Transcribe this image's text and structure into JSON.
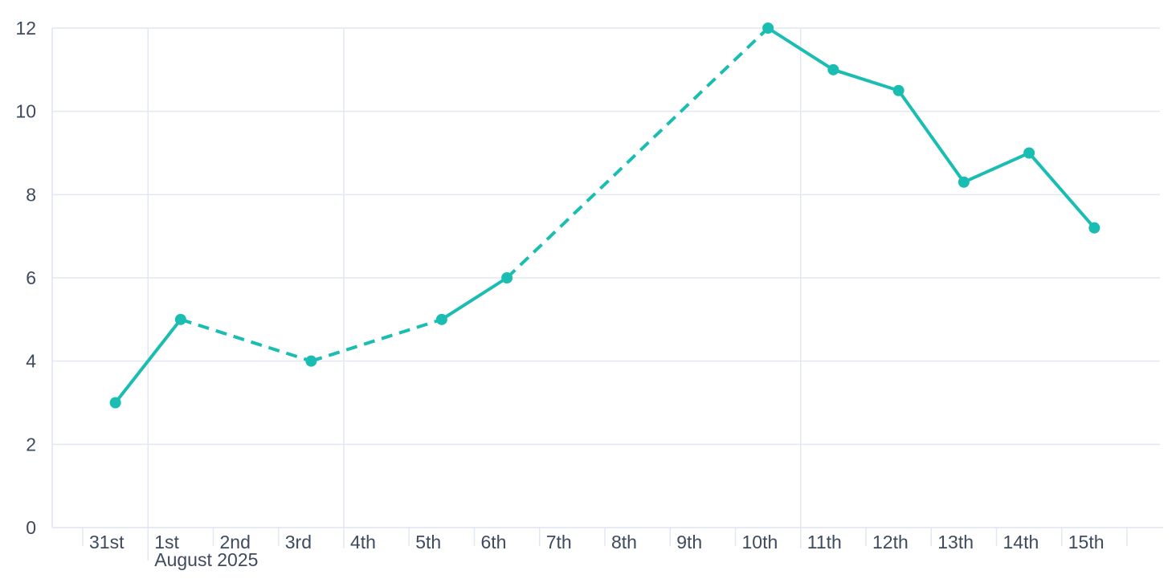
{
  "chart_data": {
    "type": "line",
    "title": "",
    "legend": "none",
    "x": {
      "categories": [
        "31st",
        "1st",
        "2nd",
        "3rd",
        "4th",
        "5th",
        "6th",
        "7th",
        "8th",
        "9th",
        "10th",
        "11th",
        "12th",
        "13th",
        "14th",
        "15th"
      ],
      "axis_secondary_label": "August 2025",
      "secondary_label_under": "1st",
      "major_gridline_categories": [
        "1st",
        "4th",
        "11th"
      ]
    },
    "y": {
      "min": 0,
      "max": 12,
      "tick_step": 2,
      "tick_labels": [
        "0",
        "2",
        "4",
        "6",
        "8",
        "10",
        "12"
      ]
    },
    "series": [
      {
        "name": "daily-values",
        "color": "#1abdb2",
        "marker": "circle",
        "line_width": 4,
        "values": [
          3,
          5,
          null,
          4,
          null,
          5,
          6,
          null,
          null,
          null,
          12,
          11,
          10.5,
          8.3,
          9,
          7.2
        ],
        "missing_data_style": "dashed-bridge"
      }
    ],
    "grid": {
      "horizontal": "on",
      "vertical": "major-only"
    },
    "colors": {
      "grid": "#e3e7f1",
      "axis": "#dfe3ed",
      "labels": "#3e4a5e",
      "background": "#ffffff"
    }
  }
}
